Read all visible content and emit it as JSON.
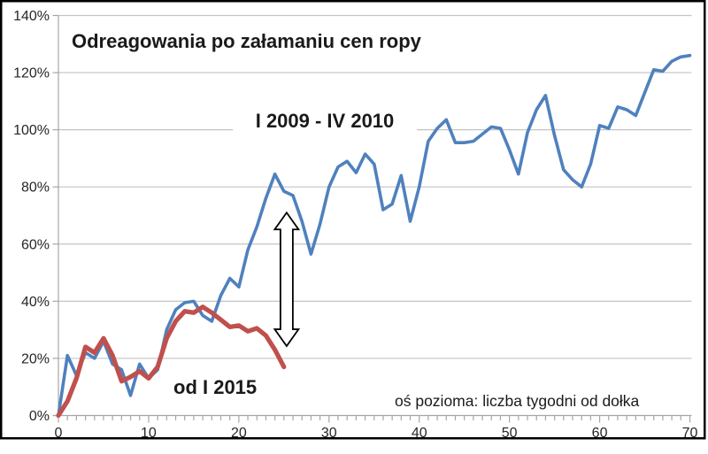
{
  "chart_data": {
    "type": "line",
    "title": "Odreagowania po załamaniu cen ropy",
    "x_axis": {
      "min": 0,
      "max": 70,
      "major_ticks": [
        0,
        10,
        20,
        30,
        40,
        50,
        60,
        70
      ],
      "tick_labels": [
        "0",
        "10",
        "20",
        "30",
        "40",
        "50",
        "60",
        "70"
      ],
      "minor_tick_interval": 1,
      "note": "oś pozioma: liczba tygodni od dołka"
    },
    "y_axis": {
      "tick_values": [
        0,
        20,
        40,
        60,
        80,
        100,
        120,
        140
      ],
      "tick_labels": [
        "0%",
        "20%",
        "40%",
        "60%",
        "80%",
        "100%",
        "120%",
        "140%"
      ],
      "unit": "%"
    },
    "grid": "horizontal-only",
    "legend": "none-inline-text-labels",
    "series": [
      {
        "name": "I 2009 - IV 2010",
        "color": "#4F81BD",
        "line_width": 3.6,
        "x_start": 0,
        "values": [
          0,
          21,
          14,
          22,
          20,
          26,
          18,
          16,
          7,
          18,
          13,
          16,
          30,
          37,
          39.5,
          40,
          35,
          33,
          42,
          48,
          45,
          58,
          66,
          76,
          84.5,
          78.5,
          77,
          68,
          56.5,
          67,
          80,
          87,
          89,
          85,
          91.5,
          88,
          72,
          74,
          84,
          68,
          80,
          96,
          100.5,
          103.5,
          95.5,
          95.5,
          96,
          98.5,
          101,
          100.5,
          93,
          84.5,
          99,
          107,
          112,
          98,
          86,
          82.5,
          80,
          88,
          101.5,
          100.5,
          108,
          107,
          105,
          113,
          121,
          120.5,
          124,
          125.5,
          126
        ]
      },
      {
        "name": "od I 2015",
        "color": "#C0504D",
        "line_width": 5.2,
        "x_start": 0,
        "values": [
          0,
          5,
          13,
          24,
          22,
          27,
          21,
          12,
          13.5,
          15.5,
          13,
          17,
          27,
          33,
          36.5,
          36,
          38,
          36,
          33.5,
          31,
          31.5,
          29.5,
          30.5,
          28,
          23,
          17
        ]
      }
    ],
    "annotations": {
      "series1_label": "I 2009 - IV 2010",
      "series2_label": "od I 2015",
      "x_axis_note": "oś pozioma: liczba tygodni od dołka",
      "range_arrow": {
        "x_week": 25.3,
        "from_pct": 24.3,
        "to_pct": 71,
        "style": "double-headed-vertical-outlined-arrow"
      }
    }
  },
  "colors": {
    "series_2009": "#4F81BD",
    "series_2015": "#C0504D",
    "gridline": "#C4C4C4",
    "axis": "#A6A6A6",
    "tick_label": "#262626",
    "text": "#1A1A1A",
    "frame_border": "#000000",
    "background": "#FFFFFF"
  }
}
